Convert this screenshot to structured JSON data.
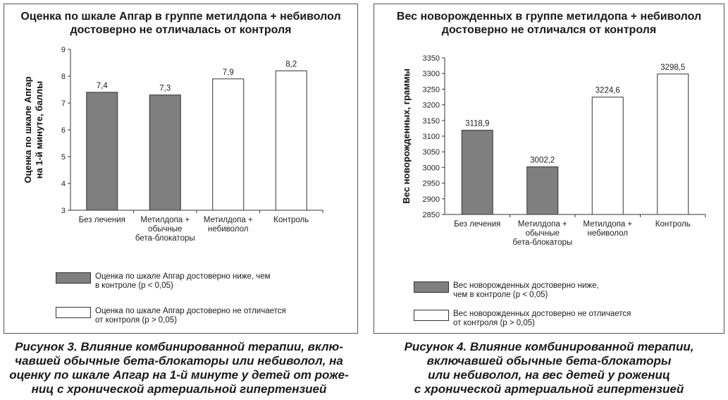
{
  "chart_data": [
    {
      "type": "bar",
      "title": [
        "Оценка по шкале Апгар в группе метилдопа + небиволол",
        "достоверно не отличалась от контроля"
      ],
      "ylabel": [
        "Оценка по шкале Апгар",
        "на 1-й минуте, баллы"
      ],
      "xlabel": "",
      "ylim": [
        3,
        9
      ],
      "yticks": [
        "3",
        "4",
        "5",
        "6",
        "7",
        "8",
        "9"
      ],
      "categories": [
        [
          "Без лечения"
        ],
        [
          "Метилдопа +",
          "обычные",
          "бета-блокаторы"
        ],
        [
          "Метилдопа +",
          "небиволол"
        ],
        [
          "Контроль"
        ]
      ],
      "values": [
        7.4,
        7.3,
        7.9,
        8.2
      ],
      "value_labels": [
        "7,4",
        "7,3",
        "7,9",
        "8,2"
      ],
      "bar_fill": [
        "dark",
        "dark",
        "light",
        "light"
      ],
      "legend": [
        {
          "style": "dark",
          "text": "Оценка по шкале Апгар достоверно ниже, чем\nв контроле (р < 0,05)"
        },
        {
          "style": "light",
          "text": "Оценка по шкале Апгар достоверно не отличается\nот контроля (р > 0,05)"
        }
      ],
      "caption": [
        "Рисунок 3. Влияние комбинированной терапии, вклю-",
        "чавшей обычные бета-блокаторы или небиволол, на",
        "оценку по шкале Апгар на 1-й минуте у детей от роже-",
        "ниц с хронической артериальной гипертензией"
      ]
    },
    {
      "type": "bar",
      "title": [
        "Вес новорожденных в группе метилдопа + небиволол",
        "достоверно не отличался от контроля"
      ],
      "ylabel": [
        "Вес новорожденных, граммы"
      ],
      "xlabel": "",
      "ylim": [
        2850,
        3350
      ],
      "yticks": [
        "2850",
        "2900",
        "2950",
        "3000",
        "3050",
        "3100",
        "3150",
        "3200",
        "3250",
        "3300",
        "3350"
      ],
      "categories": [
        [
          "Без лечения"
        ],
        [
          "Метилдопа +",
          "обычные",
          "бета-блокаторы"
        ],
        [
          "Метилдопа +",
          "небиволол"
        ],
        [
          "Контроль"
        ]
      ],
      "values": [
        3118.9,
        3002.2,
        3224.6,
        3298.5
      ],
      "value_labels": [
        "3118,9",
        "3002,2",
        "3224,6",
        "3298,5"
      ],
      "bar_fill": [
        "dark",
        "dark",
        "light",
        "light"
      ],
      "legend": [
        {
          "style": "dark",
          "text": "Вес новорожденных достоверно ниже,\nчем в контроле (р < 0,05)"
        },
        {
          "style": "light",
          "text": "Вес новорожденных достоверно не отличается\nот контроля (р > 0,05)"
        }
      ],
      "caption": [
        "Рисунок 4. Влияние комбинированной терапии,",
        "включавшей обычные бета-блокаторы",
        "или небиволол, на вес детей у рожениц",
        "с хронической артериальной гипертензией"
      ]
    }
  ],
  "colors": {
    "dark_bar": "#7f7f7f",
    "light_bar": "#ffffff",
    "axis": "#333333"
  }
}
